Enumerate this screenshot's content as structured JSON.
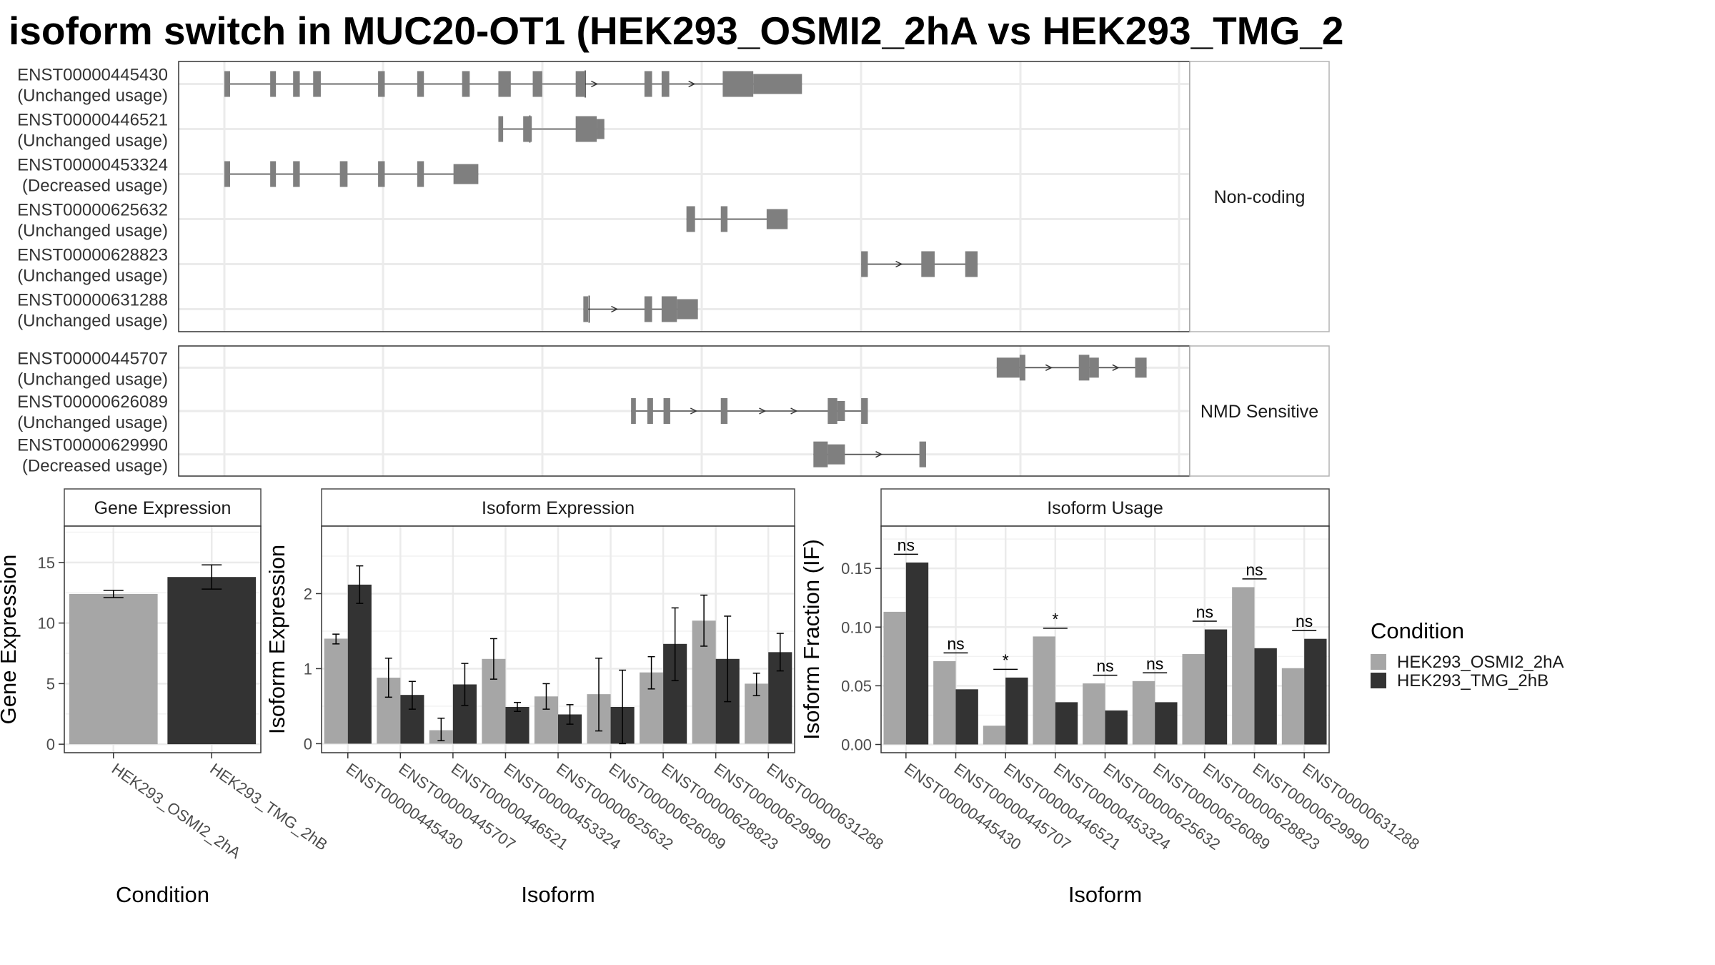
{
  "title": "isoform switch in MUC20-OT1 (HEK293_OSMI2_2hA vs HEK293_TMG_2",
  "colors": {
    "cond_a": "#a6a6a6",
    "cond_b": "#333333",
    "exon": "#7f7f7f",
    "grid": "#ebebeb"
  },
  "structure": {
    "coord_range": [
      0,
      100
    ],
    "groups": [
      {
        "label": "Non-coding",
        "transcripts": [
          {
            "id": "ENST00000445430",
            "usage": "(Unchanged usage)",
            "exons": [
              [
                0.0,
                0.6,
                "s"
              ],
              [
                4.8,
                5.4,
                "s"
              ],
              [
                7.2,
                7.9,
                "s"
              ],
              [
                9.3,
                10.1,
                "s"
              ],
              [
                16.1,
                16.8,
                "s"
              ],
              [
                20.2,
                20.9,
                "s"
              ],
              [
                24.9,
                25.7,
                "s"
              ],
              [
                28.7,
                30.0,
                "s"
              ],
              [
                32.3,
                33.3,
                "s"
              ],
              [
                36.8,
                37.8,
                "s"
              ],
              [
                44.0,
                44.8,
                "s"
              ],
              [
                45.8,
                46.6,
                "s"
              ],
              [
                52.2,
                55.4,
                "b"
              ],
              [
                55.4,
                60.5,
                "m"
              ]
            ],
            "arrows": [
              38.8,
              49.0
            ],
            "tick": 37.8
          },
          {
            "id": "ENST00000446521",
            "usage": "(Unchanged usage)",
            "exons": [
              [
                28.7,
                29.2,
                "s"
              ],
              [
                31.3,
                32.2,
                "b"
              ],
              [
                36.8,
                39.0,
                "b"
              ],
              [
                39.0,
                39.8,
                "m"
              ]
            ],
            "arrows": [],
            "tick": 32.0
          },
          {
            "id": "ENST00000453324",
            "usage": "(Decreased usage)",
            "exons": [
              [
                0.0,
                0.6,
                "s"
              ],
              [
                4.8,
                5.4,
                "s"
              ],
              [
                7.2,
                7.9,
                "s"
              ],
              [
                12.1,
                12.9,
                "s"
              ],
              [
                16.1,
                16.8,
                "s"
              ],
              [
                20.2,
                20.9,
                "s"
              ],
              [
                24.0,
                26.6,
                "m"
              ]
            ],
            "arrows": [],
            "tick": null
          },
          {
            "id": "ENST00000625632",
            "usage": "(Unchanged usage)",
            "exons": [
              [
                48.4,
                49.3,
                "s"
              ],
              [
                52.0,
                52.7,
                "s"
              ],
              [
                56.8,
                59.0,
                "m"
              ]
            ],
            "arrows": [],
            "tick": null
          },
          {
            "id": "ENST00000628823",
            "usage": "(Unchanged usage)",
            "exons": [
              [
                66.7,
                67.4,
                "s"
              ],
              [
                73.0,
                74.4,
                "s"
              ],
              [
                77.6,
                78.9,
                "s"
              ]
            ],
            "arrows": [
              70.7
            ],
            "tick": null
          },
          {
            "id": "ENST00000631288",
            "usage": "(Unchanged usage)",
            "exons": [
              [
                37.6,
                38.1,
                "s"
              ],
              [
                44.0,
                44.8,
                "s"
              ],
              [
                45.8,
                47.4,
                "b"
              ],
              [
                47.4,
                49.6,
                "m"
              ]
            ],
            "arrows": [
              40.9
            ],
            "tick": 38.2
          }
        ]
      },
      {
        "label": "NMD Sensitive",
        "transcripts": [
          {
            "id": "ENST00000445707",
            "usage": "(Unchanged usage)",
            "exons": [
              [
                80.9,
                83.3,
                "m"
              ],
              [
                83.3,
                83.9,
                "b"
              ],
              [
                89.5,
                90.6,
                "b"
              ],
              [
                90.6,
                91.6,
                "m"
              ],
              [
                95.4,
                96.6,
                "m"
              ]
            ],
            "arrows": [
              86.4,
              93.4
            ],
            "tick": null
          },
          {
            "id": "ENST00000626089",
            "usage": "(Unchanged usage)",
            "exons": [
              [
                42.6,
                43.1,
                "s"
              ],
              [
                44.3,
                44.9,
                "s"
              ],
              [
                46.0,
                46.7,
                "b"
              ],
              [
                52.0,
                52.7,
                "b"
              ],
              [
                63.2,
                64.2,
                "b"
              ],
              [
                64.2,
                65.0,
                "m"
              ],
              [
                66.7,
                67.4,
                "s"
              ]
            ],
            "arrows": [
              49.2,
              56.4,
              59.7
            ],
            "tick": null
          },
          {
            "id": "ENST00000629990",
            "usage": "(Decreased usage)",
            "exons": [
              [
                61.7,
                63.2,
                "b"
              ],
              [
                63.2,
                65.0,
                "m"
              ],
              [
                72.8,
                73.5,
                "s"
              ]
            ],
            "arrows": [
              68.6
            ],
            "tick": null
          }
        ]
      }
    ]
  },
  "chart_data": [
    {
      "type": "bar",
      "title": "Gene Expression",
      "xlabel": "Condition",
      "ylabel": "Gene Expression",
      "categories": [
        "HEK293_OSMI2_2hA",
        "HEK293_TMG_2hB"
      ],
      "values": [
        12.4,
        13.8
      ],
      "errors": [
        [
          12.1,
          12.7
        ],
        [
          12.8,
          14.8
        ]
      ],
      "ylim": [
        -0.7,
        18
      ],
      "yticks": [
        "0",
        "5",
        "10",
        "15"
      ],
      "ytick_values": [
        0,
        5,
        10,
        15
      ]
    },
    {
      "type": "bar",
      "title": "Isoform Expression",
      "xlabel": "Isoform",
      "ylabel": "Isoform Expression",
      "categories": [
        "ENST00000445430",
        "ENST00000445707",
        "ENST00000446521",
        "ENST00000453324",
        "ENST00000625632",
        "ENST00000626089",
        "ENST00000628823",
        "ENST00000629990",
        "ENST00000631288"
      ],
      "series": [
        {
          "name": "HEK293_OSMI2_2hA",
          "values": [
            1.4,
            0.88,
            0.18,
            1.13,
            0.63,
            0.66,
            0.95,
            1.64,
            0.8
          ],
          "errors": [
            [
              1.33,
              1.46
            ],
            [
              0.62,
              1.14
            ],
            [
              0.04,
              0.34
            ],
            [
              0.86,
              1.4
            ],
            [
              0.46,
              0.8
            ],
            [
              0.17,
              1.14
            ],
            [
              0.73,
              1.16
            ],
            [
              1.3,
              1.98
            ],
            [
              0.64,
              0.94
            ]
          ]
        },
        {
          "name": "HEK293_TMG_2hB",
          "values": [
            2.12,
            0.65,
            0.79,
            0.49,
            0.39,
            0.49,
            1.33,
            1.13,
            1.22
          ],
          "errors": [
            [
              1.87,
              2.37
            ],
            [
              0.46,
              0.83
            ],
            [
              0.51,
              1.07
            ],
            [
              0.43,
              0.55
            ],
            [
              0.26,
              0.52
            ],
            [
              0.0,
              0.98
            ],
            [
              0.84,
              1.81
            ],
            [
              0.56,
              1.7
            ],
            [
              0.97,
              1.47
            ]
          ]
        }
      ],
      "ylim": [
        -0.12,
        2.9
      ],
      "yticks": [
        "0",
        "1",
        "2"
      ],
      "ytick_values": [
        0,
        1,
        2
      ]
    },
    {
      "type": "bar",
      "title": "Isoform Usage",
      "xlabel": "Isoform",
      "ylabel": "Isoform Fraction (IF)",
      "categories": [
        "ENST00000445430",
        "ENST00000445707",
        "ENST00000446521",
        "ENST00000453324",
        "ENST00000625632",
        "ENST00000626089",
        "ENST00000628823",
        "ENST00000629990",
        "ENST00000631288"
      ],
      "series": [
        {
          "name": "HEK293_OSMI2_2hA",
          "values": [
            0.113,
            0.071,
            0.016,
            0.092,
            0.052,
            0.054,
            0.077,
            0.134,
            0.065
          ]
        },
        {
          "name": "HEK293_TMG_2hB",
          "values": [
            0.155,
            0.047,
            0.057,
            0.036,
            0.029,
            0.036,
            0.098,
            0.082,
            0.09
          ]
        }
      ],
      "significance": [
        {
          "label": "ns",
          "y": 0.162
        },
        {
          "label": "ns",
          "y": 0.078
        },
        {
          "label": "*",
          "y": 0.064
        },
        {
          "label": "*",
          "y": 0.099
        },
        {
          "label": "ns",
          "y": 0.059
        },
        {
          "label": "ns",
          "y": 0.061
        },
        {
          "label": "ns",
          "y": 0.105
        },
        {
          "label": "ns",
          "y": 0.141
        },
        {
          "label": "ns",
          "y": 0.097
        }
      ],
      "ylim": [
        -0.007,
        0.186
      ],
      "yticks": [
        "0.00",
        "0.05",
        "0.10",
        "0.15"
      ],
      "ytick_values": [
        0,
        0.05,
        0.1,
        0.15
      ]
    }
  ],
  "legend": {
    "title": "Condition",
    "items": [
      {
        "label": "HEK293_OSMI2_2hA"
      },
      {
        "label": "HEK293_TMG_2hB"
      }
    ]
  }
}
